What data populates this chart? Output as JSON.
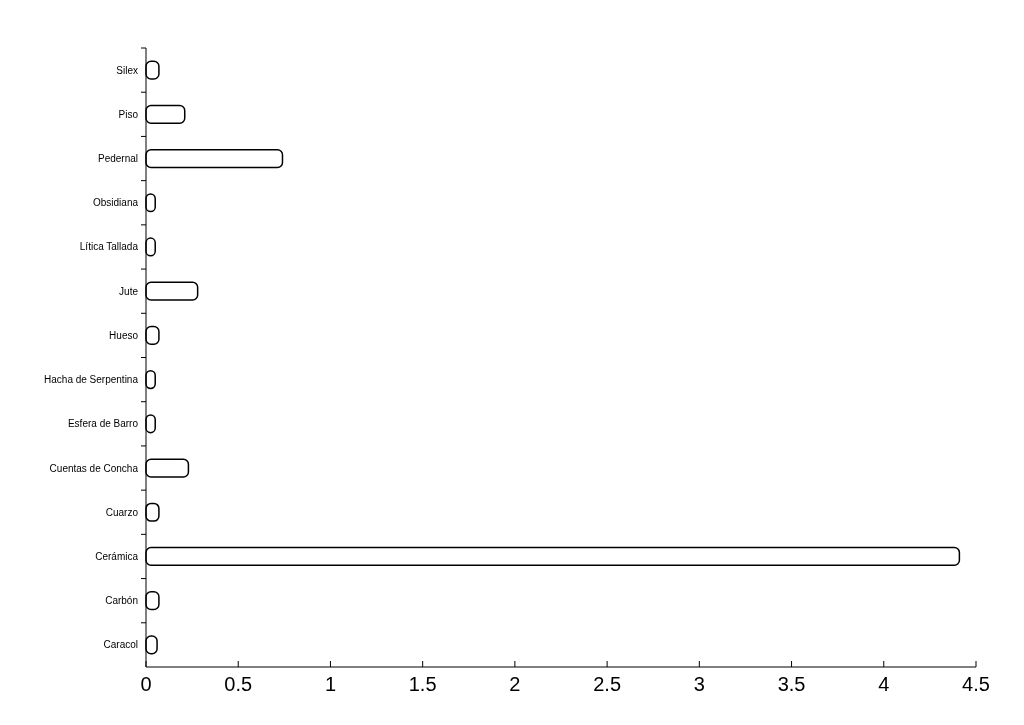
{
  "chart_data": {
    "type": "bar",
    "orientation": "horizontal",
    "categories": [
      "Silex",
      "Piso",
      "Pedernal",
      "Obsidiana",
      "Lítica Tallada",
      "Jute",
      "Hueso",
      "Hacha de Serpentina",
      "Esfera de Barro",
      "Cuentas de Concha",
      "Cuarzo",
      "Cerámica",
      "Carbón",
      "Caracol"
    ],
    "values": [
      0.07,
      0.21,
      0.74,
      0.05,
      0.05,
      0.28,
      0.07,
      0.05,
      0.05,
      0.23,
      0.07,
      4.41,
      0.07,
      0.06
    ],
    "color": "#ffffff",
    "xlim": [
      0,
      4.5
    ],
    "xticks": [
      0,
      0.5,
      1,
      1.5,
      2,
      2.5,
      3,
      3.5,
      4,
      4.5
    ],
    "grid": false
  }
}
